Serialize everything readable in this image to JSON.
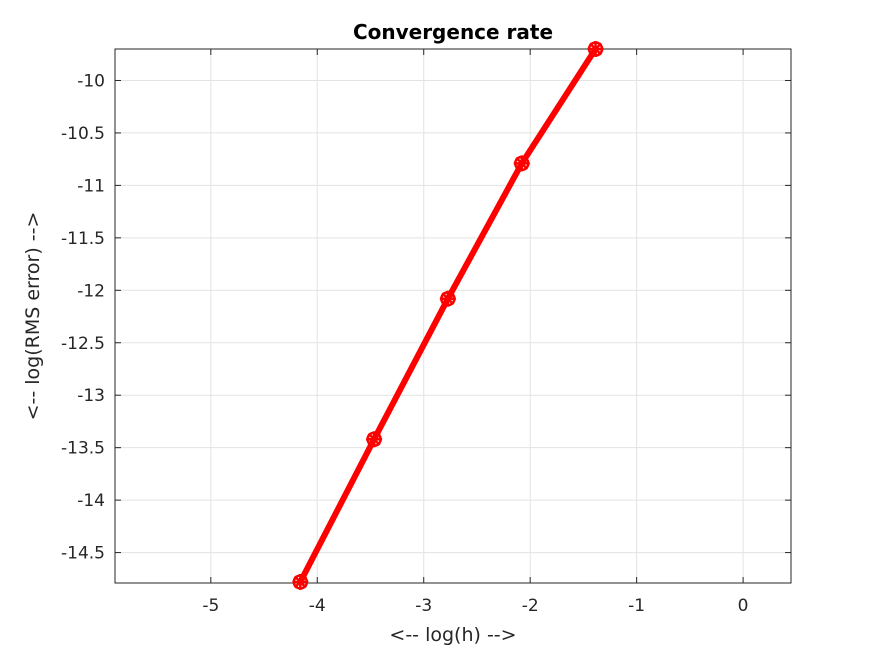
{
  "chart_data": {
    "type": "line",
    "title": "Convergence rate",
    "xlabel": "<-- log(h) -->",
    "ylabel": "<-- log(RMS error) -->",
    "xlim": [
      -5.9,
      0.45
    ],
    "ylim": [
      -14.79,
      -9.7
    ],
    "xticks": [
      -5,
      -4,
      -3,
      -2,
      -1,
      0
    ],
    "xtick_labels": [
      "-5",
      "-4",
      "-3",
      "-2",
      "-1",
      "0"
    ],
    "yticks": [
      -10,
      -10.5,
      -11,
      -11.5,
      -12,
      -12.5,
      -13,
      -13.5,
      -14,
      -14.5
    ],
    "ytick_labels": [
      "-10",
      "-10.5",
      "-11",
      "-11.5",
      "-12",
      "-12.5",
      "-13",
      "-13.5",
      "-14",
      "-14.5"
    ],
    "grid": true,
    "series": [
      {
        "x": [
          -4.159,
          -3.466,
          -2.773,
          -2.079,
          -1.386
        ],
        "y": [
          -14.78,
          -13.42,
          -12.08,
          -10.79,
          -9.7
        ],
        "color": "#ff0000",
        "marker": "asterisk-circle"
      }
    ]
  }
}
